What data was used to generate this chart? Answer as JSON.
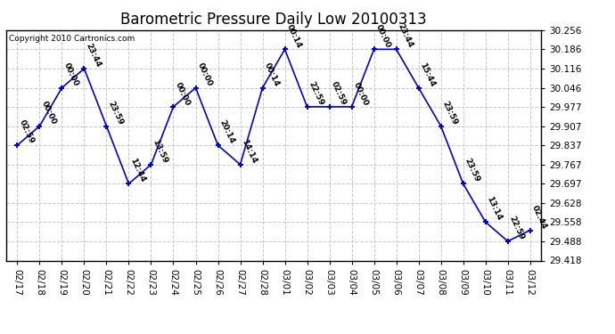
{
  "title": "Barometric Pressure Daily Low 20100313",
  "copyright": "Copyright 2010 Cartronics.com",
  "background_color": "#ffffff",
  "line_color": "#0000cc",
  "marker_color": "#0000cc",
  "grid_color": "#c8c8c8",
  "title_fontsize": 12,
  "annotation_fontsize": 6.5,
  "data": [
    {
      "date": "02/17",
      "value": 29.837,
      "time": "02:59"
    },
    {
      "date": "02/18",
      "value": 29.907,
      "time": "00:00"
    },
    {
      "date": "02/19",
      "value": 30.046,
      "time": "00:00"
    },
    {
      "date": "02/20",
      "value": 30.116,
      "time": "23:44"
    },
    {
      "date": "02/21",
      "value": 29.907,
      "time": "23:59"
    },
    {
      "date": "02/22",
      "value": 29.697,
      "time": "12:44"
    },
    {
      "date": "02/23",
      "value": 29.767,
      "time": "13:59"
    },
    {
      "date": "02/24",
      "value": 29.977,
      "time": "00:00"
    },
    {
      "date": "02/25",
      "value": 30.046,
      "time": "00:00"
    },
    {
      "date": "02/26",
      "value": 29.837,
      "time": "20:14"
    },
    {
      "date": "02/27",
      "value": 29.767,
      "time": "14:14"
    },
    {
      "date": "02/28",
      "value": 30.046,
      "time": "00:14"
    },
    {
      "date": "03/01",
      "value": 30.186,
      "time": "00:14"
    },
    {
      "date": "03/02",
      "value": 29.977,
      "time": "22:59"
    },
    {
      "date": "03/03",
      "value": 29.977,
      "time": "02:59"
    },
    {
      "date": "03/04",
      "value": 29.977,
      "time": "00:00"
    },
    {
      "date": "03/05",
      "value": 30.186,
      "time": "00:00"
    },
    {
      "date": "03/06",
      "value": 30.186,
      "time": "23:44"
    },
    {
      "date": "03/07",
      "value": 30.046,
      "time": "15:44"
    },
    {
      "date": "03/08",
      "value": 29.907,
      "time": "23:59"
    },
    {
      "date": "03/09",
      "value": 29.697,
      "time": "23:59"
    },
    {
      "date": "03/10",
      "value": 29.558,
      "time": "13:14"
    },
    {
      "date": "03/11",
      "value": 29.488,
      "time": "22:59"
    },
    {
      "date": "03/12",
      "value": 29.528,
      "time": "02:44"
    }
  ],
  "ylim": [
    29.418,
    30.256
  ],
  "yticks": [
    29.418,
    29.488,
    29.558,
    29.628,
    29.697,
    29.767,
    29.837,
    29.907,
    29.977,
    30.046,
    30.116,
    30.186,
    30.256
  ]
}
